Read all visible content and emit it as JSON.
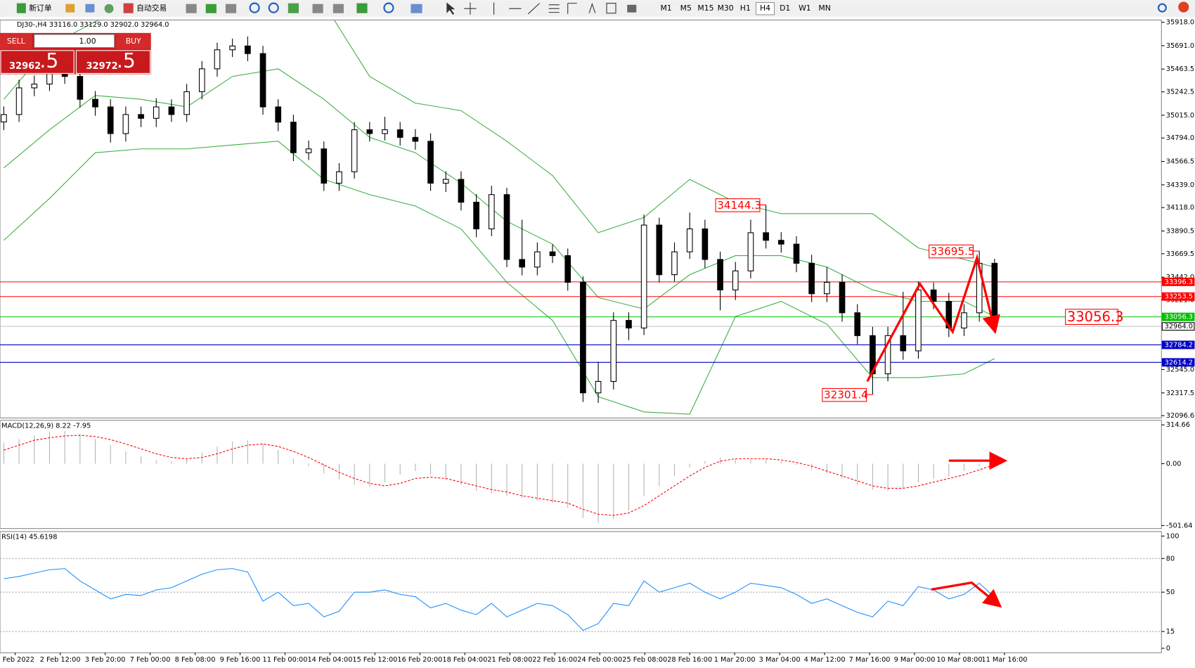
{
  "toolbar": {
    "new_order": "新订单",
    "auto_trade": "自动交易",
    "periods": [
      "M1",
      "M5",
      "M15",
      "M30",
      "H1",
      "H4",
      "D1",
      "W1",
      "MN"
    ],
    "selected_period": "H4"
  },
  "trade_panel": {
    "sell": "SELL",
    "buy": "BUY",
    "lot": "1.00",
    "sell_price_main": "32962",
    "sell_price_frac": ".5",
    "buy_price_main": "32972",
    "buy_price_frac": ".5"
  },
  "time_axis": {
    "labels": [
      "1 Feb 2022",
      "2 Feb 12:00",
      "3 Feb 20:00",
      "7 Feb 00:00",
      "8 Feb 08:00",
      "9 Feb 16:00",
      "11 Feb 00:00",
      "14 Feb 04:00",
      "15 Feb 12:00",
      "16 Feb 20:00",
      "18 Feb 04:00",
      "21 Feb 08:00",
      "22 Feb 16:00",
      "24 Feb 00:00",
      "25 Feb 08:00",
      "28 Feb 16:00",
      "1 Mar 20:00",
      "3 Mar 04:00",
      "4 Mar 12:00",
      "7 Mar 16:00",
      "9 Mar 00:00",
      "10 Mar 08:00",
      "11 Mar 16:00"
    ]
  },
  "chart_data": [
    {
      "type": "candlestick",
      "title": "DJ30-,H4  33116.0 33129.0 32902.0 32964.0",
      "ylim": [
        32074,
        35940
      ],
      "yticks": [
        {
          "value": 35918,
          "label": "35918.0"
        },
        {
          "value": 35691,
          "label": "35691.0"
        },
        {
          "value": 35463.5,
          "label": "35463.5"
        },
        {
          "value": 35242.5,
          "label": "35242.5"
        },
        {
          "value": 35015,
          "label": "35015.0"
        },
        {
          "value": 34794,
          "label": "34794.0"
        },
        {
          "value": 34566.5,
          "label": "34566.5"
        },
        {
          "value": 34339,
          "label": "34339.0"
        },
        {
          "value": 34118,
          "label": "34118.0"
        },
        {
          "value": 33890.5,
          "label": "33890.5"
        },
        {
          "value": 33669.5,
          "label": "33669.5"
        },
        {
          "value": 33442,
          "label": "33442.0"
        },
        {
          "value": 33221,
          "label": "33221.0"
        },
        {
          "value": 32545,
          "label": "32545.0"
        },
        {
          "value": 32317.5,
          "label": "32317.5"
        },
        {
          "value": 32096.6,
          "label": "32096.6"
        }
      ],
      "up_color": "#ffffff",
      "down_color": "#000000",
      "open": [
        34950,
        35022,
        35281,
        35318,
        35429,
        35392,
        35170,
        35096,
        34837,
        35022,
        34985,
        35096,
        35022,
        35244,
        35466,
        35651,
        35688,
        35614,
        35096,
        34948,
        34651,
        34688,
        34355,
        34466,
        34874,
        34837,
        34874,
        34800,
        34762,
        34355,
        34392,
        34170,
        33911,
        34244,
        33614,
        33540,
        33688,
        33651,
        33392,
        32318,
        32429,
        33022,
        32948,
        33948,
        33466,
        33688,
        33911,
        33614,
        33318,
        33503,
        33874,
        33800,
        33763,
        33577,
        33281,
        33392,
        33096,
        32874,
        32503,
        32874,
        32726,
        33318,
        33207,
        32948,
        33096,
        33577
      ],
      "high": [
        35100,
        35360,
        35400,
        35500,
        35520,
        35460,
        35250,
        35170,
        35100,
        35100,
        35180,
        35170,
        35320,
        35540,
        35720,
        35760,
        35780,
        35690,
        35170,
        35020,
        34770,
        34760,
        34550,
        34950,
        34950,
        35000,
        34950,
        34880,
        34840,
        34470,
        34470,
        34250,
        34330,
        34310,
        34000,
        33780,
        33760,
        33720,
        33450,
        32620,
        33100,
        33100,
        34050,
        34020,
        33780,
        34070,
        34000,
        33690,
        33590,
        34000,
        34144.3,
        33880,
        33840,
        33660,
        33540,
        33470,
        33180,
        32960,
        32960,
        33300,
        33400,
        33390,
        33290,
        33180,
        33695.5,
        33620
      ],
      "low": [
        34870,
        34950,
        35200,
        35250,
        35320,
        35090,
        35010,
        34750,
        34760,
        34900,
        34900,
        34950,
        34950,
        35170,
        35390,
        35580,
        35540,
        35020,
        34860,
        34570,
        34580,
        34280,
        34280,
        34400,
        34760,
        34770,
        34720,
        34680,
        34280,
        34270,
        34090,
        33830,
        33840,
        33540,
        33460,
        33460,
        33580,
        33310,
        32230,
        32220,
        32350,
        32830,
        32880,
        33390,
        33400,
        33620,
        33530,
        33120,
        33220,
        33430,
        33720,
        33680,
        33490,
        33200,
        33200,
        33010,
        32790,
        32301.4,
        32430,
        32640,
        32650,
        33130,
        32860,
        32870,
        33010,
        32902
      ],
      "close": [
        35022,
        35281,
        35318,
        35429,
        35392,
        35170,
        35096,
        34837,
        35022,
        34985,
        35096,
        35022,
        35244,
        35466,
        35651,
        35688,
        35614,
        35096,
        34948,
        34651,
        34688,
        34355,
        34466,
        34874,
        34837,
        34874,
        34800,
        34762,
        34355,
        34392,
        34170,
        33911,
        34244,
        33614,
        33540,
        33688,
        33651,
        33392,
        32318,
        32429,
        33022,
        32948,
        33948,
        33466,
        33688,
        33911,
        33614,
        33318,
        33503,
        33874,
        33800,
        33763,
        33577,
        33281,
        33392,
        33096,
        32874,
        32503,
        32874,
        32726,
        33318,
        33207,
        32948,
        33096,
        33577,
        32964
      ],
      "bands": {
        "color": "#3cb043",
        "x": [
          0,
          3,
          6,
          9,
          12,
          15,
          18,
          21,
          24,
          27,
          30,
          33,
          36,
          39,
          42,
          45,
          48,
          51,
          54,
          57,
          60,
          63,
          65
        ],
        "upper": [
          35170,
          35688,
          35925,
          36100,
          36100,
          36100,
          36100,
          36100,
          35392,
          35133,
          35059,
          34763,
          34429,
          33874,
          34022,
          34392,
          34170,
          34059,
          34059,
          34059,
          33726,
          33614,
          33540
        ],
        "middle": [
          34503,
          34874,
          35207,
          35170,
          35096,
          35392,
          35466,
          35170,
          34800,
          34651,
          34355,
          33985,
          33763,
          33244,
          33133,
          33466,
          33651,
          33651,
          33540,
          33318,
          33207,
          33207,
          33059
        ],
        "lower": [
          33800,
          34207,
          34651,
          34688,
          34688,
          34726,
          34763,
          34392,
          34244,
          34133,
          33911,
          33392,
          33022,
          32281,
          32133,
          32111,
          33059,
          33207,
          32985,
          32466,
          32466,
          32503,
          32651
        ]
      },
      "levels": [
        {
          "value": 33396.3,
          "color": "#ff0000"
        },
        {
          "value": 33253.5,
          "color": "#ff0000"
        },
        {
          "value": 33056.3,
          "color": "#00c000",
          "callout": true,
          "callout_color": "#ff0000"
        },
        {
          "value": 32964,
          "label": "32964.0",
          "color": "#c0c0c0"
        },
        {
          "value": 32784.2,
          "color": "#0000c8"
        },
        {
          "value": 32614.2,
          "color": "#0000c8"
        }
      ],
      "annotations": [
        {
          "value": 34144.3,
          "index": 50,
          "color": "#ff0000"
        },
        {
          "value": 33695.5,
          "index": 64,
          "color": "#ff0000"
        },
        {
          "value": 32301.4,
          "index": 57,
          "color": "#ff0000"
        }
      ]
    },
    {
      "type": "macd",
      "title": "MACD(12,26,9) 8.22 -7.95",
      "ylim": [
        -526,
        352
      ],
      "yticks": [
        314.66,
        {
          "value": 0,
          "label": "0.00"
        },
        -501.64
      ],
      "histogram_color": "#b4b4b4",
      "signal_color": "#ff0000",
      "histogram": [
        170,
        200,
        230,
        260,
        265,
        240,
        200,
        150,
        100,
        60,
        30,
        20,
        40,
        90,
        140,
        180,
        190,
        160,
        110,
        40,
        -20,
        -80,
        -130,
        -170,
        -190,
        -150,
        -90,
        -60,
        -90,
        -130,
        -170,
        -220,
        -240,
        -260,
        -280,
        -300,
        -320,
        -360,
        -440,
        -480,
        -450,
        -380,
        -260,
        -180,
        -100,
        -30,
        20,
        50,
        40,
        30,
        40,
        20,
        -10,
        -50,
        -80,
        -120,
        -170,
        -210,
        -220,
        -200,
        -150,
        -120,
        -100,
        -60,
        -20,
        8.22
      ],
      "signal": [
        110,
        150,
        190,
        210,
        225,
        230,
        220,
        195,
        160,
        120,
        80,
        50,
        40,
        50,
        80,
        120,
        150,
        160,
        140,
        100,
        50,
        -10,
        -70,
        -120,
        -160,
        -180,
        -160,
        -120,
        -110,
        -120,
        -150,
        -180,
        -210,
        -230,
        -260,
        -280,
        -300,
        -320,
        -370,
        -410,
        -420,
        -400,
        -340,
        -260,
        -180,
        -100,
        -30,
        20,
        40,
        40,
        40,
        30,
        10,
        -20,
        -60,
        -100,
        -140,
        -180,
        -200,
        -200,
        -180,
        -150,
        -120,
        -90,
        -50,
        -7.95
      ]
    },
    {
      "type": "line",
      "title": "RSI(14) 45.6198",
      "ylim": [
        -4,
        104
      ],
      "yticks": [
        100,
        80,
        50,
        15,
        0
      ],
      "levels": [
        80,
        50,
        15
      ],
      "color": "#1e90ff",
      "values": [
        62,
        64,
        67,
        70,
        71,
        60,
        52,
        44,
        48,
        47,
        52,
        54,
        60,
        66,
        70,
        71,
        68,
        42,
        50,
        38,
        40,
        28,
        33,
        50,
        50,
        52,
        48,
        46,
        36,
        40,
        34,
        30,
        40,
        28,
        34,
        40,
        38,
        30,
        16,
        22,
        40,
        38,
        60,
        50,
        54,
        58,
        50,
        44,
        50,
        58,
        56,
        54,
        48,
        40,
        44,
        38,
        32,
        28,
        42,
        38,
        55,
        52,
        44,
        48,
        58,
        45.6198
      ]
    }
  ]
}
